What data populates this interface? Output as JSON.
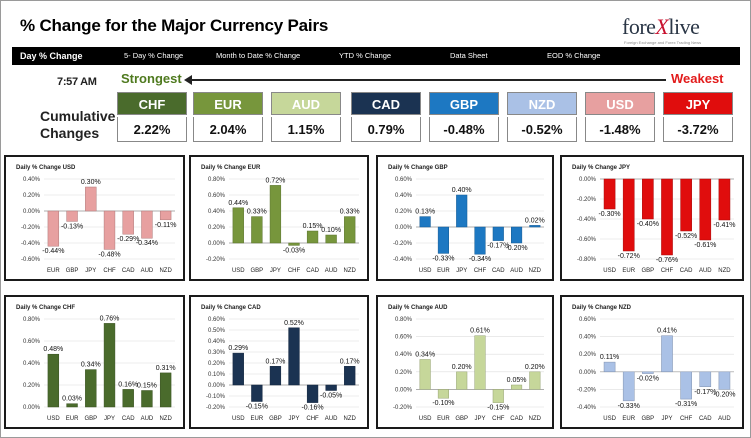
{
  "header": {
    "title": "% Change for the Major Currency Pairs",
    "logo_text_pre": "fore",
    "logo_text_x": "X",
    "logo_text_post": "live",
    "logo_tagline": "Foreign Exchange and Forex Trading News"
  },
  "nav": {
    "items": [
      "Day % Change",
      "5- Day % Change",
      "Month to Date % Change",
      "YTD % Change",
      "Data Sheet",
      "EOD % Change"
    ]
  },
  "summary": {
    "time": "7:57 AM",
    "strongest_label": "Strongest",
    "weakest_label": "Weakest",
    "cumulative_label_1": "Cumulative",
    "cumulative_label_2": "Changes",
    "currencies": [
      {
        "code": "CHF",
        "value": "2.22%",
        "color": "#4a6b2c"
      },
      {
        "code": "EUR",
        "value": "2.04%",
        "color": "#77963c"
      },
      {
        "code": "AUD",
        "value": "1.15%",
        "color": "#c6d79a"
      },
      {
        "code": "CAD",
        "value": "0.79%",
        "color": "#1b3352"
      },
      {
        "code": "GBP",
        "value": "-0.48%",
        "color": "#1d78c2"
      },
      {
        "code": "NZD",
        "value": "-0.52%",
        "color": "#aac1e6"
      },
      {
        "code": "USD",
        "value": "-1.48%",
        "color": "#e7a0a0"
      },
      {
        "code": "JPY",
        "value": "-3.72%",
        "color": "#e00d0d"
      }
    ]
  },
  "chart_data": [
    {
      "type": "bar",
      "title": "Daily % Change USD",
      "categories": [
        "EUR",
        "GBP",
        "JPY",
        "CHF",
        "CAD",
        "AUD",
        "NZD"
      ],
      "values": [
        -0.44,
        -0.13,
        0.3,
        -0.48,
        -0.29,
        -0.34,
        -0.11
      ],
      "labels": [
        "-0.44%",
        "-0.13%",
        "0.30%",
        "-0.48%",
        "-0.29%",
        "-0.34%",
        "-0.11%"
      ],
      "ylim": [
        -0.6,
        0.4
      ],
      "ticks": [
        "0.40%",
        "0.20%",
        "0.00%",
        "-0.20%",
        "-0.40%",
        "-0.60%"
      ],
      "color": "#e7a0a0"
    },
    {
      "type": "bar",
      "title": "Daily % Change EUR",
      "categories": [
        "USD",
        "GBP",
        "JPY",
        "CHF",
        "CAD",
        "AUD",
        "NZD"
      ],
      "values": [
        0.44,
        0.33,
        0.72,
        -0.03,
        0.15,
        0.1,
        0.33
      ],
      "labels": [
        "0.44%",
        "0.33%",
        "0.72%",
        "-0.03%",
        "0.15%",
        "0.10%",
        "0.33%"
      ],
      "ylim": [
        -0.2,
        0.8
      ],
      "ticks": [
        "0.80%",
        "0.60%",
        "0.40%",
        "0.20%",
        "0.00%",
        "-0.20%"
      ],
      "color": "#77963c"
    },
    {
      "type": "bar",
      "title": "Daily % Change GBP",
      "categories": [
        "USD",
        "EUR",
        "JPY",
        "CHF",
        "CAD",
        "AUD",
        "NZD"
      ],
      "values": [
        0.13,
        -0.33,
        0.4,
        -0.34,
        -0.17,
        -0.2,
        0.02
      ],
      "labels": [
        "0.13%",
        "-0.33%",
        "0.40%",
        "-0.34%",
        "-0.17%",
        "-0.20%",
        "0.02%"
      ],
      "ylim": [
        -0.4,
        0.6
      ],
      "ticks": [
        "0.60%",
        "0.40%",
        "0.20%",
        "0.00%",
        "-0.20%",
        "-0.40%"
      ],
      "color": "#1d78c2"
    },
    {
      "type": "bar",
      "title": "Daily % Change JPY",
      "categories": [
        "USD",
        "EUR",
        "GBP",
        "CHF",
        "CAD",
        "AUD",
        "NZD"
      ],
      "values": [
        -0.3,
        -0.72,
        -0.4,
        -0.76,
        -0.52,
        -0.61,
        -0.41
      ],
      "labels": [
        "-0.30%",
        "-0.72%",
        "-0.40%",
        "-0.76%",
        "-0.52%",
        "-0.61%",
        "-0.41%"
      ],
      "ylim": [
        -0.8,
        0.0
      ],
      "ticks": [
        "0.00%",
        "-0.20%",
        "-0.40%",
        "-0.60%",
        "-0.80%"
      ],
      "color": "#e00d0d"
    },
    {
      "type": "bar",
      "title": "Daily % Change CHF",
      "categories": [
        "USD",
        "EUR",
        "GBP",
        "JPY",
        "CAD",
        "AUD",
        "NZD"
      ],
      "values": [
        0.48,
        0.03,
        0.34,
        0.76,
        0.16,
        0.15,
        0.31
      ],
      "labels": [
        "0.48%",
        "0.03%",
        "0.34%",
        "0.76%",
        "0.16%",
        "0.15%",
        "0.31%"
      ],
      "ylim": [
        0.0,
        0.8
      ],
      "ticks": [
        "0.80%",
        "0.60%",
        "0.40%",
        "0.20%",
        "0.00%"
      ],
      "color": "#4a6b2c"
    },
    {
      "type": "bar",
      "title": "Daily % Change CAD",
      "categories": [
        "USD",
        "EUR",
        "GBP",
        "JPY",
        "CHF",
        "AUD",
        "NZD"
      ],
      "values": [
        0.29,
        -0.15,
        0.17,
        0.52,
        -0.16,
        -0.05,
        0.17
      ],
      "labels": [
        "0.29%",
        "-0.15%",
        "0.17%",
        "0.52%",
        "-0.16%",
        "-0.05%",
        "0.17%"
      ],
      "ylim": [
        -0.2,
        0.6
      ],
      "ticks": [
        "0.60%",
        "0.50%",
        "0.40%",
        "0.30%",
        "0.20%",
        "0.10%",
        "0.00%",
        "-0.10%",
        "-0.20%"
      ],
      "color": "#1b3352"
    },
    {
      "type": "bar",
      "title": "Daily % Change AUD",
      "categories": [
        "USD",
        "EUR",
        "GBP",
        "JPY",
        "CHF",
        "CAD",
        "NZD"
      ],
      "values": [
        0.34,
        -0.1,
        0.2,
        0.61,
        -0.15,
        0.05,
        0.2
      ],
      "labels": [
        "0.34%",
        "-0.10%",
        "0.20%",
        "0.61%",
        "-0.15%",
        "0.05%",
        "0.20%"
      ],
      "ylim": [
        -0.2,
        0.8
      ],
      "ticks": [
        "0.80%",
        "0.60%",
        "0.40%",
        "0.20%",
        "0.00%",
        "-0.20%"
      ],
      "color": "#c6d79a"
    },
    {
      "type": "bar",
      "title": "Daily % Change NZD",
      "categories": [
        "USD",
        "EUR",
        "GBP",
        "JPY",
        "CHF",
        "CAD",
        "AUD"
      ],
      "values": [
        0.11,
        -0.33,
        -0.02,
        0.41,
        -0.31,
        -0.17,
        -0.2
      ],
      "labels": [
        "0.11%",
        "-0.33%",
        "-0.02%",
        "0.41%",
        "-0.31%",
        "-0.17%",
        "-0.20%"
      ],
      "ylim": [
        -0.4,
        0.6
      ],
      "ticks": [
        "0.60%",
        "0.40%",
        "0.20%",
        "0.00%",
        "-0.20%",
        "-0.40%"
      ],
      "color": "#aac1e6"
    }
  ]
}
